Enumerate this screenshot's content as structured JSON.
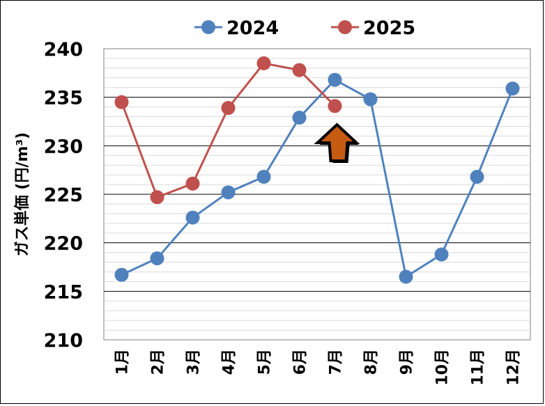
{
  "chart_data": {
    "type": "line",
    "title": "",
    "xlabel": "",
    "ylabel": "ガス単価 (円/m³)",
    "categories": [
      "1月",
      "2月",
      "3月",
      "4月",
      "5月",
      "6月",
      "7月",
      "8月",
      "9月",
      "10月",
      "11月",
      "12月"
    ],
    "ylim": [
      210,
      240
    ],
    "yticks": [
      210,
      215,
      220,
      225,
      230,
      235,
      240
    ],
    "grid": true,
    "legend_position": "top",
    "series": [
      {
        "name": "2024",
        "color": "#4f81bd",
        "values": [
          216.7,
          218.4,
          222.6,
          225.2,
          226.8,
          232.9,
          236.8,
          234.8,
          216.5,
          218.8,
          226.8,
          235.9
        ]
      },
      {
        "name": "2025",
        "color": "#c0504d",
        "values": [
          234.5,
          224.7,
          226.1,
          233.9,
          238.5,
          237.8,
          234.1,
          null,
          null,
          null,
          null,
          null
        ]
      }
    ],
    "annotation": {
      "type": "arrow",
      "icon": "up-arrow-icon",
      "color": "#c55a11",
      "at_category": "7月",
      "pointing": "up"
    }
  }
}
